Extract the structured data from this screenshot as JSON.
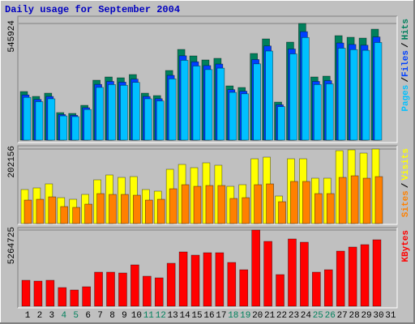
{
  "chart_data": [
    {
      "type": "bar",
      "title": "Daily usage for September 2004",
      "ylim": [
        0,
        545924
      ],
      "yticks": [
        545924
      ],
      "grid": true,
      "legend_separator": "/",
      "series": [
        {
          "name": "Hits",
          "color": "#00805c",
          "values": [
            227460,
            204714,
            219878,
            128894,
            125103,
            163013,
            280534,
            295698,
            291907,
            307071,
            219878,
            208505,
            326026,
            424592,
            394264,
            375309,
            382891,
            253997,
            246415,
            405637,
            473875,
            178177,
            458711,
            545924,
            295698,
            299489,
            489039,
            481457,
            477666,
            519367,
            null
          ]
        },
        {
          "name": "Files",
          "color": "#0040ff",
          "values": [
            211538,
            190384,
            204487,
            119871,
            116346,
            151602,
            260897,
            275000,
            271474,
            285576,
            204487,
            193910,
            303204,
            394871,
            366666,
            349037,
            356089,
            236217,
            229166,
            377242,
            440704,
            165705,
            426601,
            507709,
            275000,
            278525,
            454806,
            447755,
            444229,
            483011,
            null
          ]
        },
        {
          "name": "Pages",
          "color": "#00c0ff",
          "values": [
            200165,
            180148,
            193493,
            113427,
            110091,
            143451,
            246870,
            260214,
            256878,
            270222,
            193493,
            183484,
            286903,
            373641,
            346952,
            330272,
            336944,
            223517,
            216845,
            356961,
            417010,
            156796,
            403666,
            480413,
            260214,
            263550,
            430354,
            423682,
            420346,
            457043,
            null
          ]
        }
      ]
    },
    {
      "type": "bar",
      "ylim": [
        0,
        202156
      ],
      "yticks": [
        202156
      ],
      "grid": true,
      "legend_separator": "/",
      "series": [
        {
          "name": "Visits",
          "color": "#ffff00",
          "values": [
            92274,
            96668,
            107653,
            70304,
            65910,
            79092,
            118638,
            131820,
            125229,
            127426,
            92274,
            87880,
            147199,
            160381,
            151593,
            164775,
            158184,
            101062,
            105456,
            175760,
            180154,
            74698,
            175760,
            175760,
            123032,
            123032,
            197730,
            199927,
            191139,
            202156,
            null
          ]
        },
        {
          "name": "Sites",
          "color": "#ff8000",
          "values": [
            63713,
            65910,
            72501,
            46137,
            43940,
            52728,
            81289,
            79092,
            79092,
            76895,
            63713,
            65910,
            94471,
            105456,
            101062,
            103259,
            103259,
            68107,
            70304,
            105456,
            107653,
            59319,
            114244,
            114244,
            81289,
            81289,
            125229,
            129623,
            123032,
            127426,
            null
          ]
        }
      ]
    },
    {
      "type": "bar",
      "ylim": [
        0,
        5264725
      ],
      "yticks": [
        5264725
      ],
      "grid": true,
      "categories": [
        "1",
        "2",
        "3",
        "4",
        "5",
        "6",
        "7",
        "8",
        "9",
        "10",
        "11",
        "12",
        "13",
        "14",
        "15",
        "16",
        "17",
        "18",
        "19",
        "20",
        "21",
        "22",
        "23",
        "24",
        "25",
        "26",
        "27",
        "28",
        "29",
        "30",
        "31"
      ],
      "category_colors": [
        "#000000",
        "#000000",
        "#000000",
        "#00805c",
        "#00805c",
        "#000000",
        "#000000",
        "#000000",
        "#000000",
        "#000000",
        "#00805c",
        "#00805c",
        "#000000",
        "#000000",
        "#000000",
        "#000000",
        "#000000",
        "#00805c",
        "#00805c",
        "#000000",
        "#000000",
        "#000000",
        "#000000",
        "#000000",
        "#00805c",
        "#00805c",
        "#000000",
        "#000000",
        "#000000",
        "#000000",
        "#000000"
      ],
      "series": [
        {
          "name": "KBytes",
          "color": "#ff0000",
          "values": [
            1792256,
            1736248,
            1792256,
            1288184,
            1120160,
            1344192,
            2352336,
            2352336,
            2296328,
            2856408,
            2072296,
            1960280,
            2968424,
            3752536,
            3528504,
            3696528,
            3696528,
            3024432,
            2520360,
            5264725,
            4480640,
            2184312,
            4648664,
            4424632,
            2352336,
            2520360,
            3808544,
            4088584,
            4256608,
            4592656,
            null
          ]
        }
      ]
    }
  ]
}
